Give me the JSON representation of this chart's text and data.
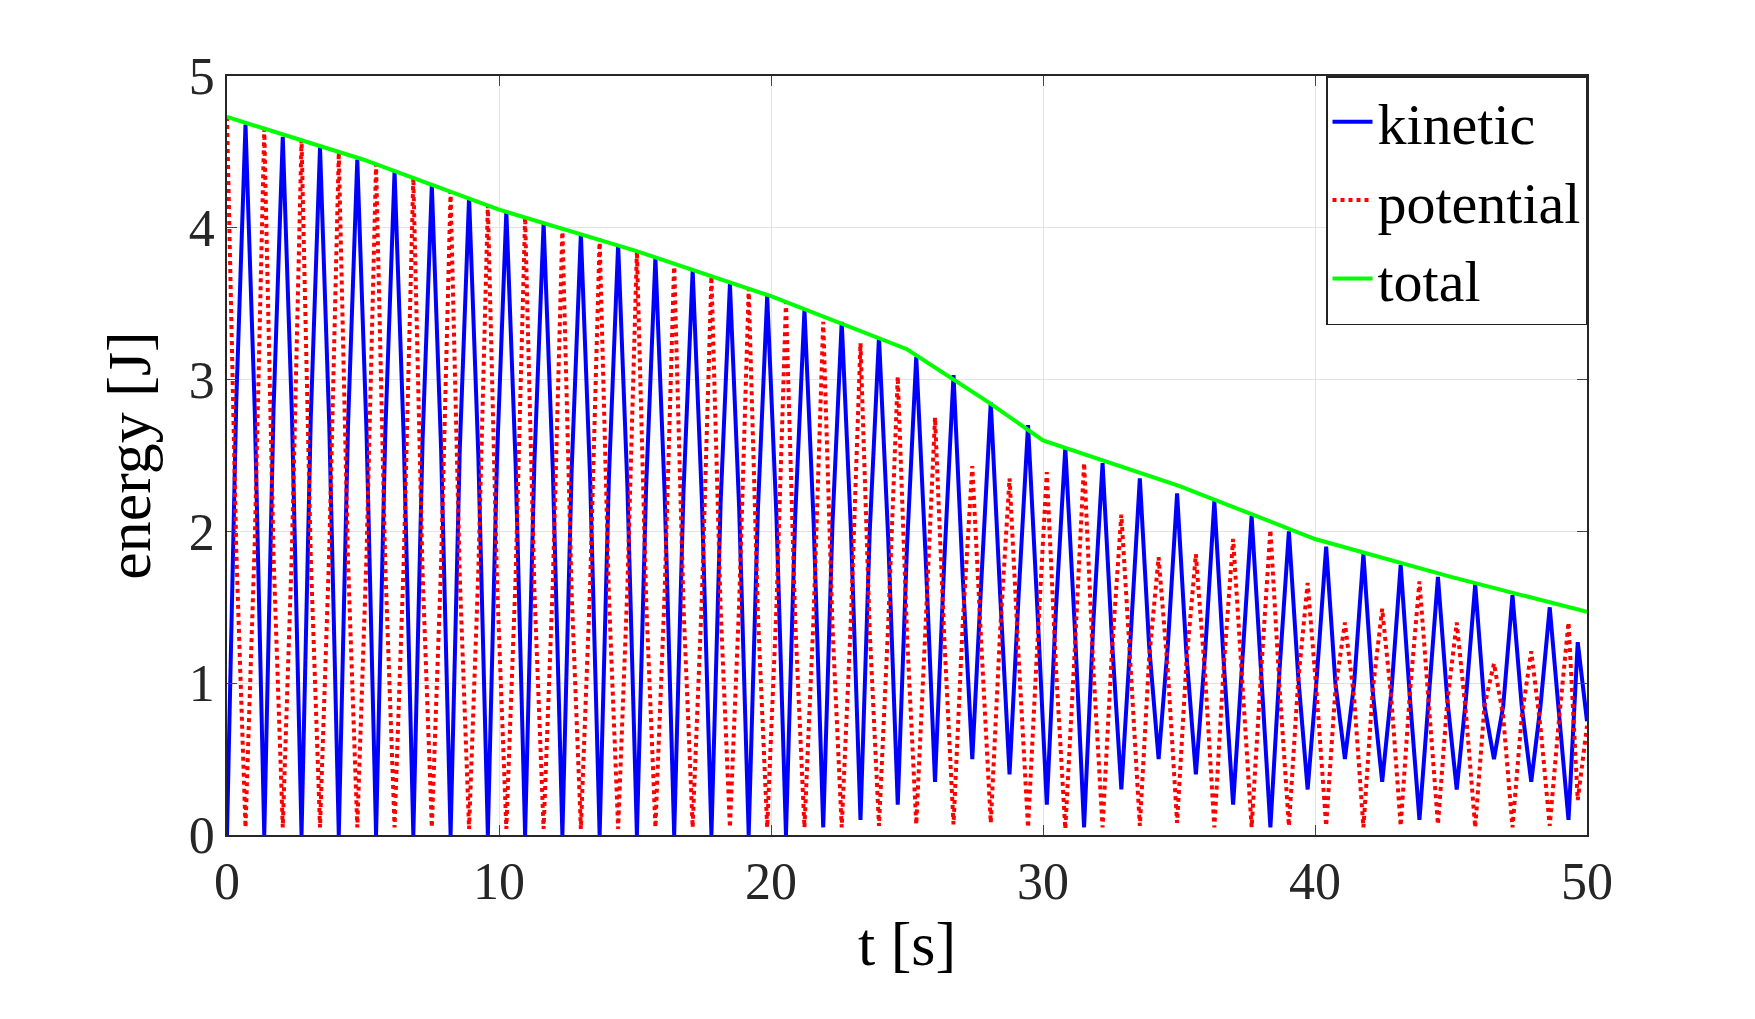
{
  "chart_data": {
    "type": "line",
    "xlabel": "t [s]",
    "ylabel": "energy [J]",
    "xlim": [
      0,
      50
    ],
    "xticks": [
      0,
      10,
      20,
      30,
      40,
      50
    ],
    "ylim": [
      0,
      5
    ],
    "yticks": [
      0,
      1,
      2,
      3,
      4,
      5
    ],
    "grid": true,
    "legend": "top right",
    "x": [
      0,
      0.34,
      0.68,
      1.02,
      1.37,
      1.71,
      2.05,
      2.39,
      2.74,
      3.08,
      3.42,
      3.76,
      4.11,
      4.45,
      4.79,
      5.13,
      5.48,
      5.82,
      6.16,
      6.5,
      6.85,
      7.19,
      7.53,
      7.87,
      8.22,
      8.56,
      8.9,
      9.24,
      9.59,
      9.93,
      10.27,
      10.61,
      10.96,
      11.3,
      11.64,
      11.98,
      12.33,
      12.67,
      13.01,
      13.35,
      13.7,
      14.04,
      14.38,
      14.72,
      15.07,
      15.41,
      15.75,
      16.09,
      16.44,
      16.78,
      17.12,
      17.46,
      17.81,
      18.15,
      18.49,
      18.83,
      19.18,
      19.52,
      19.86,
      20.2,
      20.55,
      20.89,
      21.23,
      21.57,
      21.92,
      22.26,
      22.6,
      22.94,
      23.29,
      23.63,
      23.97,
      24.31,
      24.66,
      25,
      25.34,
      25.68,
      26.03,
      26.37,
      26.71,
      27.05,
      27.4,
      27.74,
      28.08,
      28.42,
      28.77,
      29.11,
      29.45,
      29.79,
      30.14,
      30.48,
      30.82,
      31.16,
      31.51,
      31.85,
      32.19,
      32.53,
      32.88,
      33.22,
      33.56,
      33.9,
      34.25,
      34.59,
      34.93,
      35.27,
      35.62,
      35.96,
      36.3,
      36.64,
      36.99,
      37.33,
      37.67,
      38.01,
      38.36,
      38.7,
      39.04,
      39.38,
      39.73,
      40.07,
      40.41,
      40.75,
      41.1,
      41.44,
      41.78,
      42.12,
      42.47,
      42.81,
      43.15,
      43.49,
      43.84,
      44.18,
      44.52,
      44.86,
      45.21,
      45.55,
      45.89,
      46.23,
      46.58,
      46.92,
      47.26,
      47.6,
      47.95,
      48.29,
      48.63,
      48.97,
      49.32,
      49.66,
      50
    ],
    "series": [
      {
        "name": "kinetic",
        "color": "#0000ff",
        "line_style": "solid",
        "values": [
          0,
          2.85,
          4.68,
          2.8,
          0,
          2.8,
          4.6,
          2.75,
          0,
          2.75,
          4.53,
          2.7,
          0,
          2.7,
          4.45,
          2.65,
          0,
          2.65,
          4.37,
          2.6,
          0,
          2.6,
          4.28,
          2.55,
          0,
          2.55,
          4.2,
          2.5,
          0,
          2.5,
          4.11,
          2.45,
          0,
          2.45,
          4.03,
          2.4,
          0,
          2.4,
          3.96,
          2.35,
          0,
          2.35,
          3.89,
          2.3,
          0,
          2.3,
          3.8,
          2.25,
          0,
          2.25,
          3.72,
          2.2,
          0,
          2.2,
          3.63,
          2.15,
          0,
          2.15,
          3.55,
          2.1,
          0,
          2.1,
          3.46,
          2.05,
          0.05,
          2.05,
          3.38,
          2,
          0.1,
          2,
          3.28,
          1.95,
          0.2,
          1.9,
          3.15,
          1.85,
          0.35,
          1.8,
          3.03,
          1.7,
          0.5,
          1.7,
          2.85,
          1.6,
          0.4,
          1.6,
          2.7,
          1.5,
          0.2,
          1.5,
          2.55,
          1.4,
          0.05,
          1.4,
          2.45,
          1.3,
          0.3,
          1.3,
          2.35,
          1.25,
          0.5,
          1.25,
          2.25,
          1.2,
          0.4,
          1.2,
          2.2,
          1.15,
          0.2,
          1.15,
          2.1,
          1.1,
          0.05,
          1.1,
          2,
          1.05,
          0.3,
          1.05,
          1.9,
          1,
          0.5,
          1,
          1.85,
          0.95,
          0.35,
          0.95,
          1.78,
          0.9,
          0.1,
          0.9,
          1.7,
          0.9,
          0.3,
          0.9,
          1.65,
          0.85,
          0.5,
          0.85,
          1.58,
          0.85,
          0.35,
          0.85,
          1.5,
          0.8,
          0.1,
          1.27,
          0.75
        ]
      },
      {
        "name": "potential",
        "color": "#ff0000",
        "line_style": "dotted",
        "values": [
          4.73,
          1.88,
          0.05,
          1.93,
          4.65,
          1.85,
          0.05,
          1.9,
          4.58,
          1.83,
          0.05,
          1.88,
          4.5,
          1.8,
          0.05,
          1.85,
          4.42,
          1.77,
          0.05,
          1.82,
          4.33,
          1.73,
          0.05,
          1.78,
          4.24,
          1.69,
          0.04,
          1.74,
          4.15,
          1.65,
          0.04,
          1.7,
          4.07,
          1.62,
          0.04,
          1.67,
          4,
          1.6,
          0.04,
          1.65,
          3.93,
          1.58,
          0.04,
          1.63,
          3.85,
          1.55,
          0.05,
          1.6,
          3.77,
          1.52,
          0.05,
          1.57,
          3.68,
          1.48,
          0.05,
          1.53,
          3.6,
          1.45,
          0.05,
          1.5,
          3.51,
          1.41,
          0.05,
          1.46,
          3.38,
          1.38,
          0.05,
          1.43,
          3.24,
          1.34,
          0.06,
          1.39,
          3.02,
          1.32,
          0.07,
          1.37,
          2.75,
          1.3,
          0.07,
          1.4,
          2.43,
          1.23,
          0.08,
          1.33,
          2.35,
          1.15,
          0.05,
          1.25,
          2.39,
          1.09,
          0.04,
          1.19,
          2.45,
          1.1,
          0.05,
          1.2,
          2.11,
          1.11,
          0.06,
          1.16,
          1.83,
          1.08,
          0.08,
          1.13,
          1.85,
          1.05,
          0.05,
          1.1,
          1.95,
          1,
          0.05,
          1.05,
          2.01,
          0.96,
          0.06,
          1.01,
          1.66,
          0.91,
          0.06,
          0.96,
          1.4,
          0.9,
          0.05,
          0.95,
          1.49,
          0.89,
          0.06,
          0.94,
          1.67,
          0.87,
          0.07,
          0.87,
          1.4,
          0.8,
          0.05,
          0.85,
          1.13,
          0.78,
          0.05,
          0.78,
          1.21,
          0.71,
          0.06,
          0.76,
          1.4,
          0.23,
          0.72
        ]
      },
      {
        "name": "total",
        "color": "#00ff00",
        "line_style": "solid",
        "x": [
          0,
          5,
          10,
          15,
          20,
          25,
          28,
          30,
          35,
          40,
          45,
          50
        ],
        "values": [
          4.73,
          4.45,
          4.12,
          3.85,
          3.55,
          3.2,
          2.85,
          2.6,
          2.3,
          1.95,
          1.7,
          1.47
        ]
      }
    ]
  }
}
